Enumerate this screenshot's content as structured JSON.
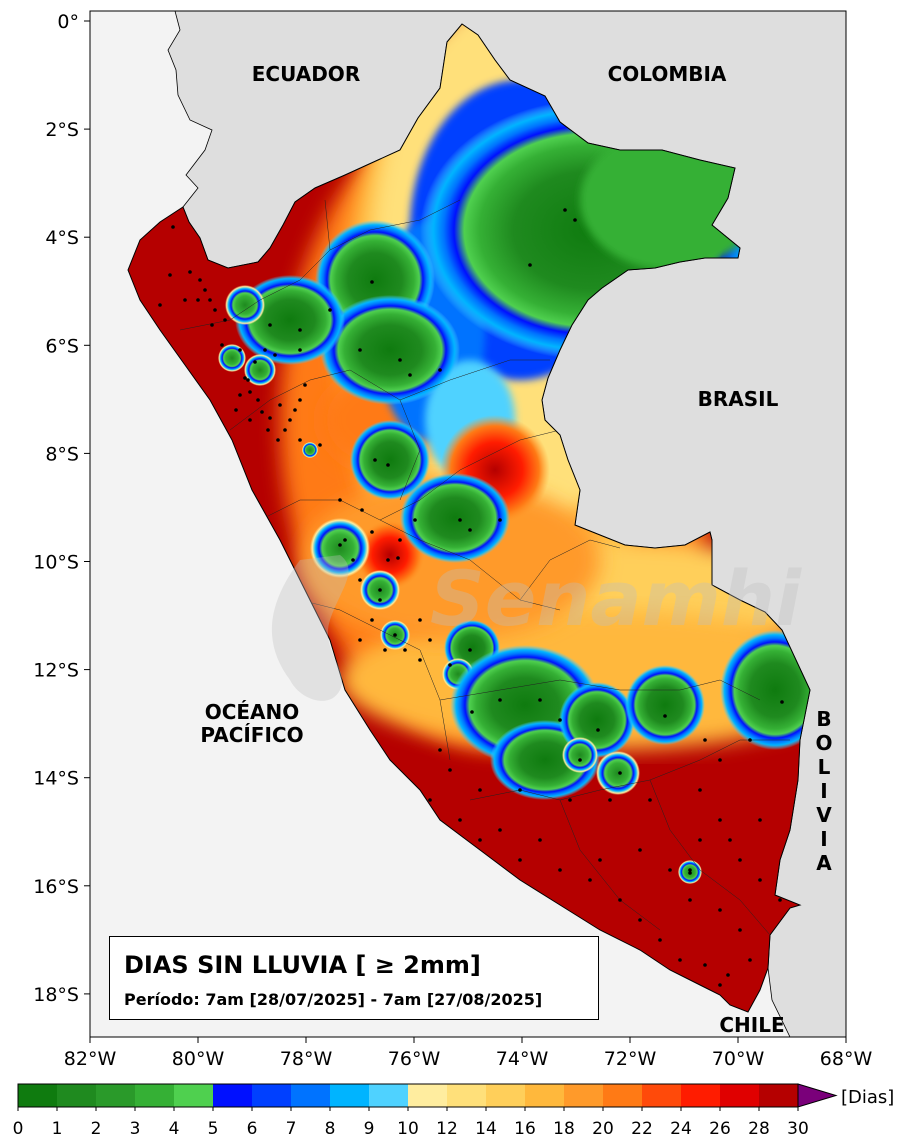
{
  "map": {
    "title": "DIAS SIN LLUVIA [ ≥ 2mm]",
    "period": "Período: 7am [28/07/2025] - 7am [27/08/2025]",
    "watermark": "Senamhi",
    "lat_ticks": [
      "0°",
      "2°S",
      "4°S",
      "6°S",
      "8°S",
      "10°S",
      "12°S",
      "14°S",
      "16°S",
      "18°S"
    ],
    "lon_ticks": [
      "82°W",
      "80°W",
      "78°W",
      "76°W",
      "74°W",
      "72°W",
      "70°W",
      "68°W"
    ],
    "countries": {
      "ecuador": "ECUADOR",
      "colombia": "COLOMBIA",
      "brasil": "BRASIL",
      "bolivia": "BOLIVIA",
      "chile": "CHILE",
      "ocean_line1": "OCÉANO",
      "ocean_line2": "PACÍFICO"
    }
  },
  "colorbar": {
    "unit": "[Dias]",
    "ticks": [
      "0",
      "1",
      "2",
      "3",
      "4",
      "5",
      "6",
      "7",
      "8",
      "9",
      "10",
      "12",
      "14",
      "16",
      "18",
      "20",
      "22",
      "24",
      "26",
      "28",
      "30"
    ],
    "colors": [
      "#0f7b0f",
      "#1f8a1f",
      "#2a9a2a",
      "#35b035",
      "#4fd04f",
      "#0010ff",
      "#0040ff",
      "#0073ff",
      "#00b4ff",
      "#4fd2ff",
      "#ffed9f",
      "#ffe07a",
      "#ffcf5a",
      "#ffb83c",
      "#ff9a2a",
      "#ff7a15",
      "#ff4a0a",
      "#ff1c00",
      "#e00000",
      "#b50000"
    ],
    "extend_color": "#7a007a"
  }
}
